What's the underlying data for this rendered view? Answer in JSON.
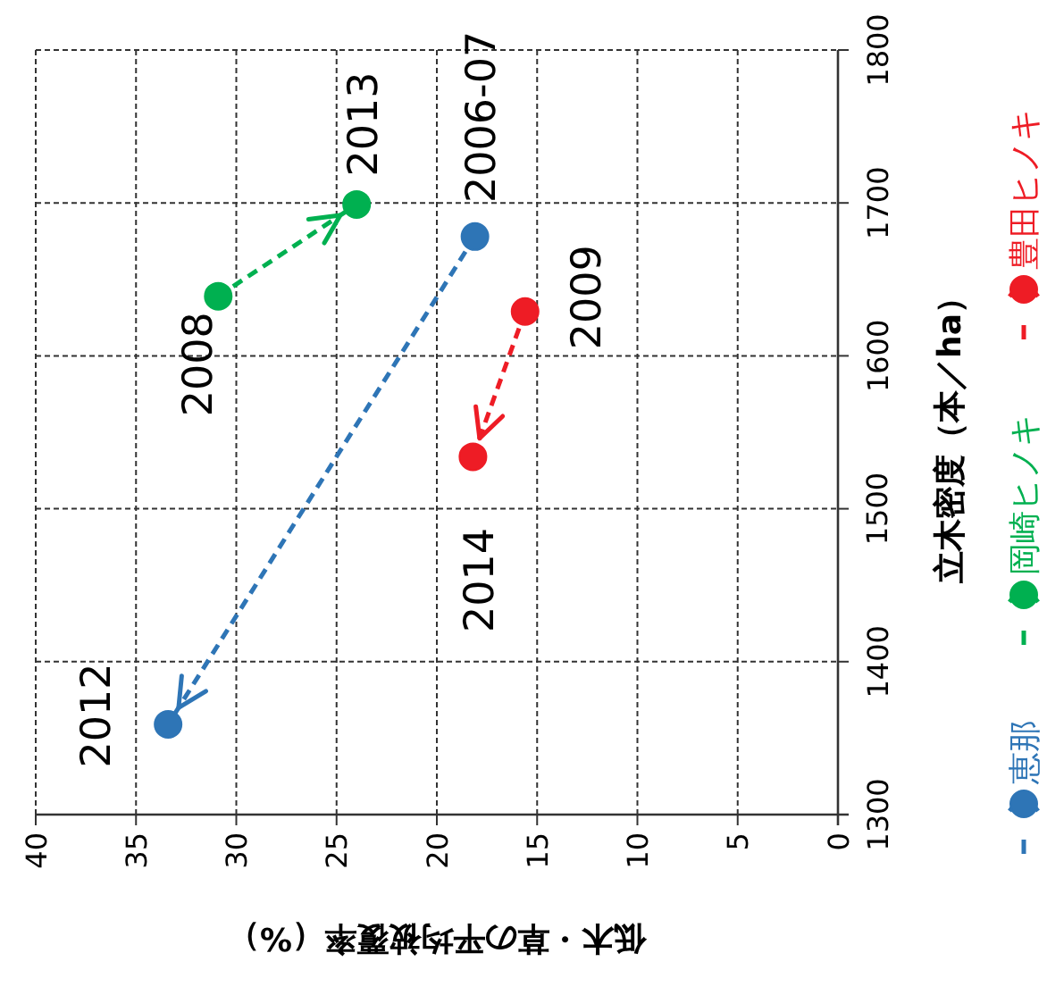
{
  "chart_data": {
    "type": "line",
    "xlabel": "低木・草の平均被覆率（%）",
    "ylabel": "立木密度（本／ha）",
    "xlim": [
      40,
      0
    ],
    "xticks": [
      40,
      35,
      30,
      25,
      20,
      15,
      10,
      5,
      0
    ],
    "ylim": [
      1300,
      1800
    ],
    "yticks": [
      1300,
      1400,
      1500,
      1600,
      1700,
      1800
    ],
    "grid": true,
    "legend": "right",
    "marker": "circle",
    "line_style": "dashed",
    "series": [
      {
        "name": "恵那",
        "color": "#2e75b6",
        "x": [
          18.1,
          33.4
        ],
        "values": [
          1678,
          1359
        ]
      },
      {
        "name": "岡崎ヒノキ",
        "color": "#00b050",
        "x": [
          30.9,
          24.0
        ],
        "values": [
          1639,
          1699
        ]
      },
      {
        "name": "豊田ヒノキ",
        "color": "#ee1c25",
        "x": [
          15.6,
          18.2
        ],
        "values": [
          1629,
          1534
        ]
      }
    ],
    "annotations": [
      {
        "text": "2006-07",
        "x": 18.1,
        "y": 1678
      },
      {
        "text": "2012",
        "x": 33.4,
        "y": 1359
      },
      {
        "text": "2008",
        "x": 30.9,
        "y": 1639
      },
      {
        "text": "2013",
        "x": 24.0,
        "y": 1699
      },
      {
        "text": "2009",
        "x": 15.6,
        "y": 1629
      },
      {
        "text": "2014",
        "x": 18.2,
        "y": 1534
      }
    ]
  }
}
